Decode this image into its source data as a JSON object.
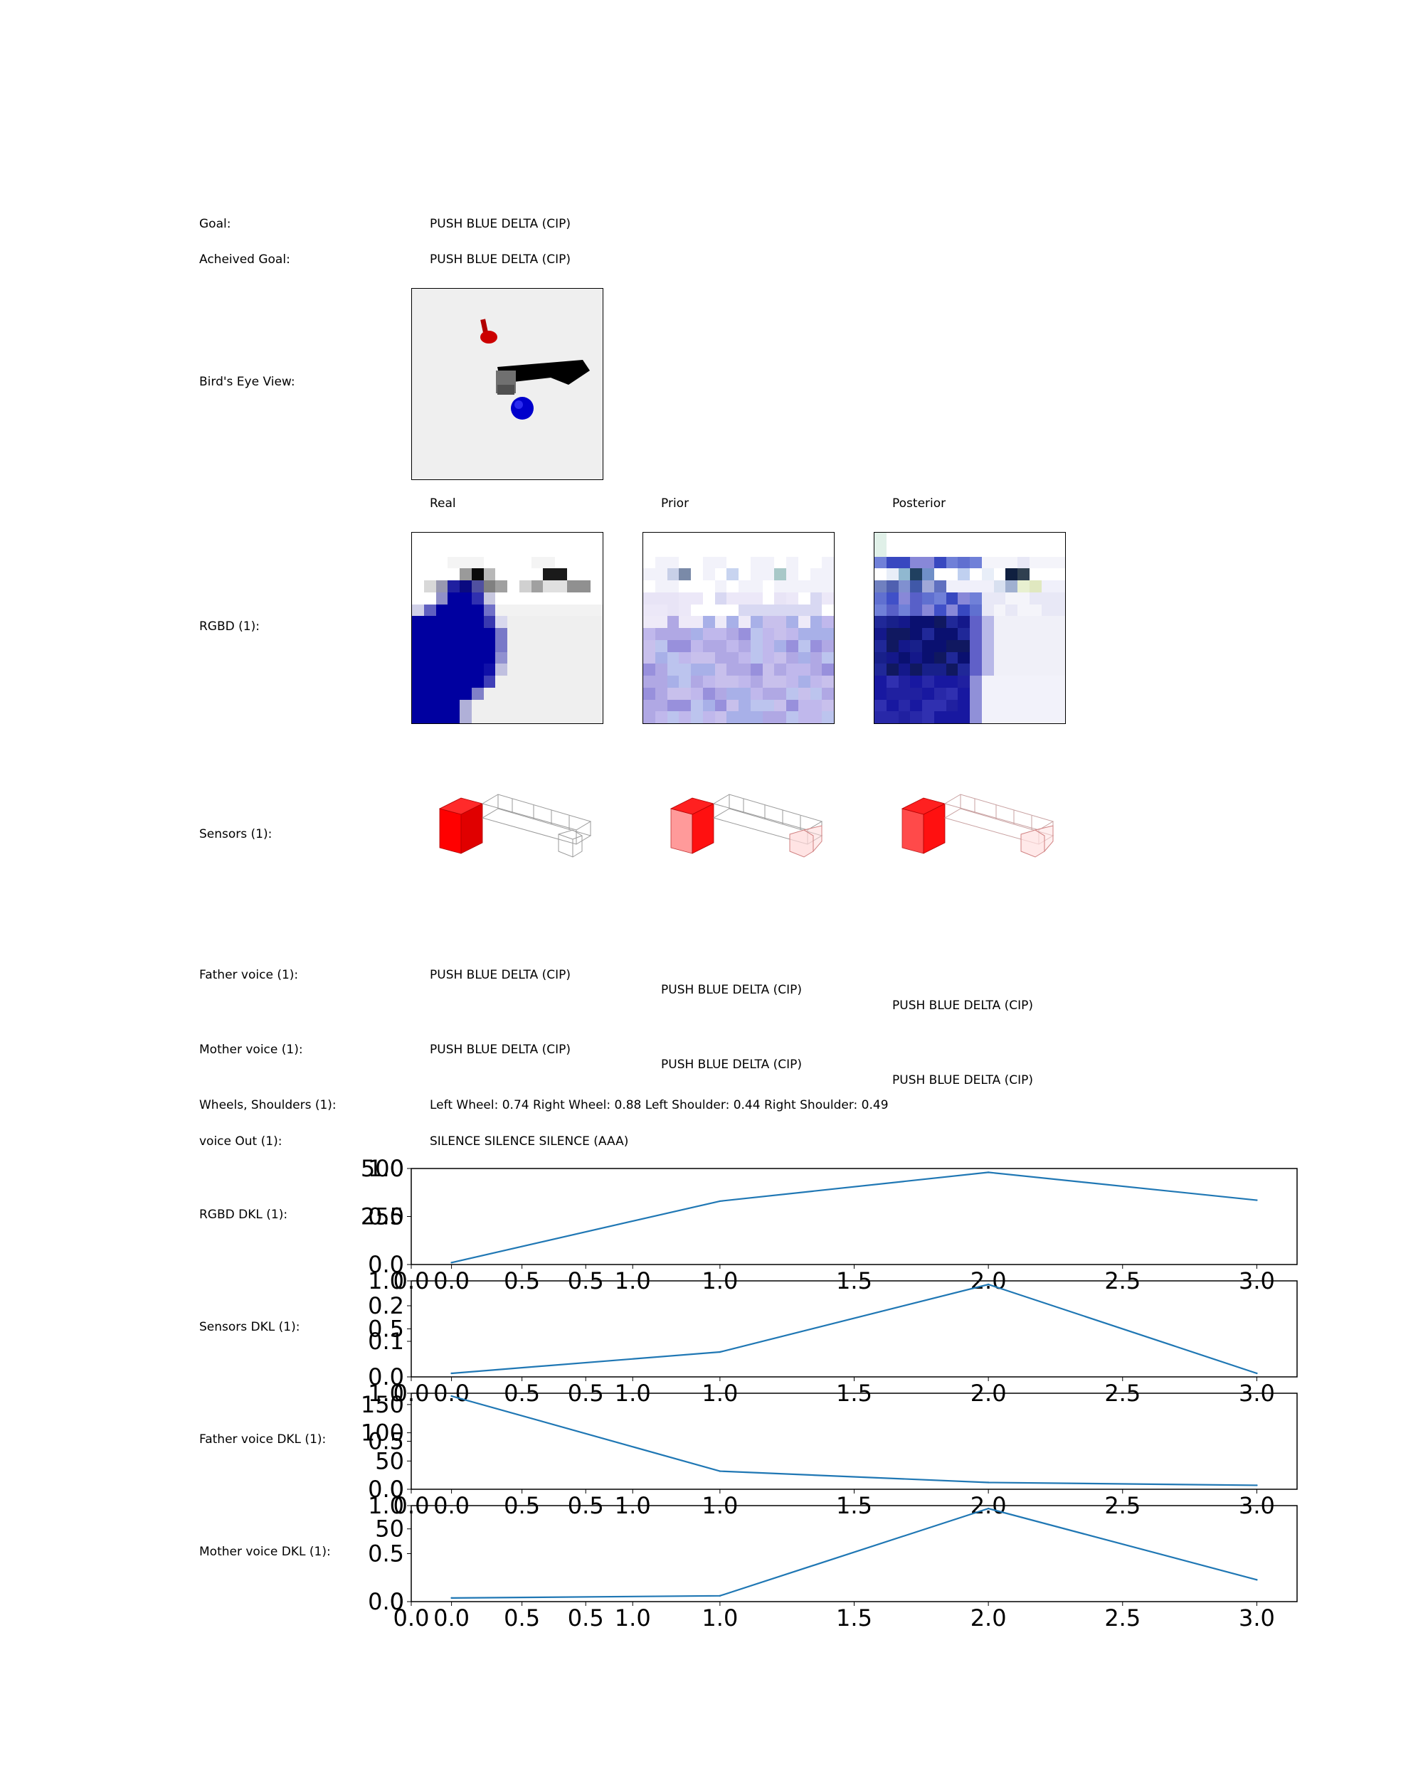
{
  "rows": {
    "goal": {
      "label": "Goal:",
      "value": "PUSH BLUE DELTA (CIP)"
    },
    "achieved": {
      "label": "Acheived Goal:",
      "value": "PUSH BLUE DELTA (CIP)"
    },
    "birds_eye": {
      "label": "Bird's Eye View:"
    },
    "rgbd": {
      "label": "RGBD (1):"
    },
    "sensors": {
      "label": "Sensors (1):"
    },
    "father": {
      "label": "Father voice (1):",
      "values": [
        "PUSH BLUE DELTA (CIP)",
        "PUSH BLUE DELTA (CIP)",
        "PUSH BLUE DELTA (CIP)"
      ]
    },
    "mother": {
      "label": "Mother voice (1):",
      "values": [
        "PUSH BLUE DELTA (CIP)",
        "PUSH BLUE DELTA (CIP)",
        "PUSH BLUE DELTA (CIP)"
      ]
    },
    "wheels": {
      "label": "Wheels, Shoulders (1):",
      "value": "Left Wheel: 0.74 Right Wheel: 0.88 Left Shoulder: 0.44 Right Shoulder: 0.49"
    },
    "voice_out": {
      "label": "voice Out (1):",
      "value": "SILENCE SILENCE SILENCE (AAA)"
    }
  },
  "columns": {
    "real": "Real",
    "prior": "Prior",
    "posterior": "Posterior"
  },
  "colors": {
    "line": "#1f77b4",
    "object_red": "#ff0000",
    "ball_blue": "#0000b0"
  },
  "chart_data": [
    {
      "type": "line",
      "row_label": "RGBD DKL (1):",
      "x": [
        0,
        1,
        2,
        3
      ],
      "values": [
        10,
        330,
        480,
        335
      ],
      "ylim": [
        0,
        500
      ],
      "xlim": [
        -0.15,
        3.15
      ],
      "yticks": [
        "0.0",
        "250",
        "500"
      ],
      "xticks": [
        "0.0",
        "0.5",
        "1.0",
        "1.5",
        "2.0",
        "2.5",
        "3.0"
      ],
      "ghost_yticks": [
        "0.5",
        "1.0"
      ],
      "ghost_xticks": [
        "0.0",
        "0.5",
        "1.0"
      ]
    },
    {
      "type": "line",
      "row_label": "Sensors DKL (1):",
      "x": [
        0,
        1,
        2,
        3
      ],
      "values": [
        0.01,
        0.07,
        0.26,
        0.01
      ],
      "ylim": [
        0,
        0.27
      ],
      "xlim": [
        -0.15,
        3.15
      ],
      "yticks": [
        "0.0",
        "0.1",
        "0.2"
      ],
      "xticks": [
        "0.0",
        "0.5",
        "1.0",
        "1.5",
        "2.0",
        "2.5",
        "3.0"
      ],
      "ghost_yticks": [
        "0.5",
        "1.0"
      ],
      "ghost_xticks": [
        "0.0",
        "0.5",
        "1.0"
      ]
    },
    {
      "type": "line",
      "row_label": "Father voice DKL (1):",
      "x": [
        0,
        1,
        2,
        3
      ],
      "values": [
        165,
        32,
        12,
        7
      ],
      "ylim": [
        0,
        170
      ],
      "xlim": [
        -0.15,
        3.15
      ],
      "yticks": [
        "0",
        "50",
        "100",
        "150"
      ],
      "xticks": [
        "0.0",
        "0.5",
        "1.0",
        "1.5",
        "2.0",
        "2.5",
        "3.0"
      ],
      "ghost_yticks": [
        "0.0",
        "0.5",
        "1.0"
      ],
      "ghost_xticks": [
        "0.0",
        "0.5",
        "1.0"
      ]
    },
    {
      "type": "line",
      "row_label": "Mother voice DKL (1):",
      "x": [
        0,
        1,
        2,
        3
      ],
      "values": [
        2.5,
        4,
        64,
        15
      ],
      "ylim": [
        0,
        66
      ],
      "xlim": [
        -0.15,
        3.15
      ],
      "yticks": [
        "0",
        "50"
      ],
      "xticks": [
        "0.0",
        "0.5",
        "1.0",
        "1.5",
        "2.0",
        "2.5",
        "3.0"
      ],
      "ghost_yticks": [
        "0.0",
        "0.5",
        "1.0"
      ],
      "ghost_xticks": [
        "0.0",
        "0.5",
        "1.0"
      ]
    }
  ]
}
